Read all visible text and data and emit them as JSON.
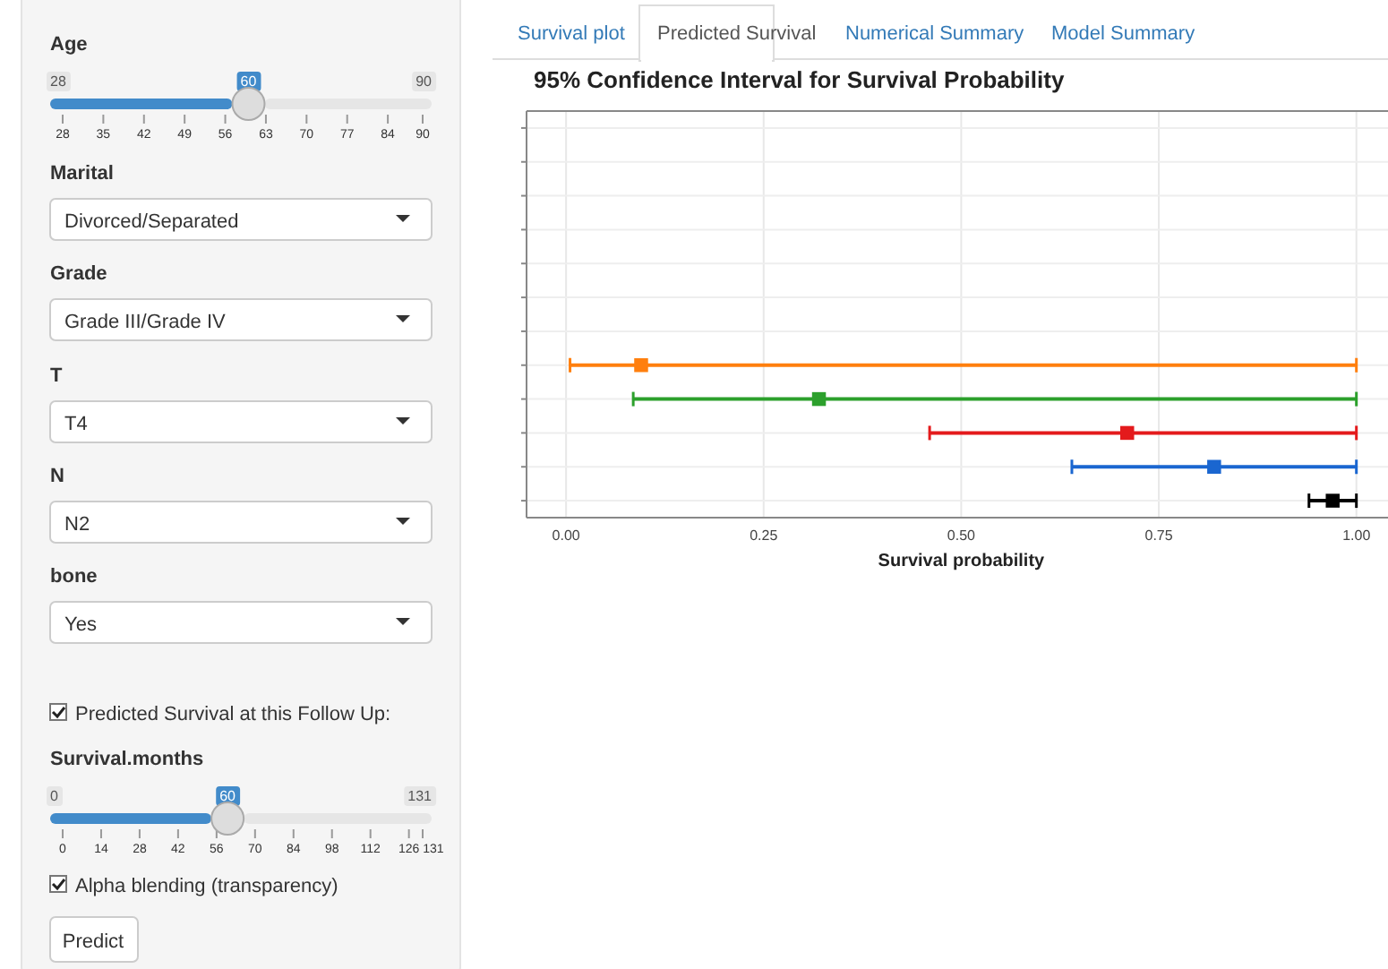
{
  "chart_data": {
    "type": "scatter",
    "orientation": "horizontal",
    "title": "95% Confidence Interval for Survival Probability",
    "xlabel": "Survival probability",
    "categories": [
      null,
      null,
      null,
      null,
      null,
      null,
      null,
      null,
      null,
      null,
      null,
      null
    ],
    "values": [
      null,
      null,
      null,
      null,
      null,
      null,
      null,
      0.095,
      0.32,
      0.71,
      0.82,
      0.97
    ],
    "errors": [
      null,
      null,
      null,
      null,
      null,
      null,
      null,
      [
        0.005,
        1.0
      ],
      [
        0.085,
        1.0
      ],
      [
        0.46,
        1.0
      ],
      [
        0.64,
        1.0
      ],
      [
        0.94,
        1.0
      ]
    ],
    "colors": [
      null,
      null,
      null,
      null,
      null,
      null,
      null,
      "#ff7f0e",
      "#2ca02c",
      "#e41a1c",
      "#1a66d0",
      "#000000"
    ],
    "xlim": [
      -0.05,
      1.04
    ],
    "xticks": [
      {
        "value": 0,
        "label": "0.00"
      },
      {
        "value": 0.25,
        "label": "0.25"
      },
      {
        "value": 0.5,
        "label": "0.50"
      },
      {
        "value": 0.75,
        "label": "0.75"
      },
      {
        "value": 1,
        "label": "1.00"
      }
    ],
    "tick_labels": "x",
    "grid": true,
    "marker": "square",
    "annotations": [
      "Survival plot",
      "Predicted Survival",
      "Numerical Summary",
      "Model Summary",
      "Age",
      "28",
      "60",
      "90",
      "28",
      "35",
      "42",
      "49",
      "56",
      "63",
      "70",
      "77",
      "84",
      "90",
      "Marital",
      "Divorced/Separated",
      "Grade",
      "Grade III/Grade IV",
      "T",
      "T4",
      "N",
      "N2",
      "bone",
      "Yes",
      "Predicted Survival at this Follow Up:",
      "Survival.months",
      "0",
      "60",
      "131",
      "0",
      "14",
      "28",
      "42",
      "56",
      "70",
      "84",
      "98",
      "112",
      "126",
      "131",
      "Alpha blending (transparency)",
      "Predict"
    ]
  }
}
